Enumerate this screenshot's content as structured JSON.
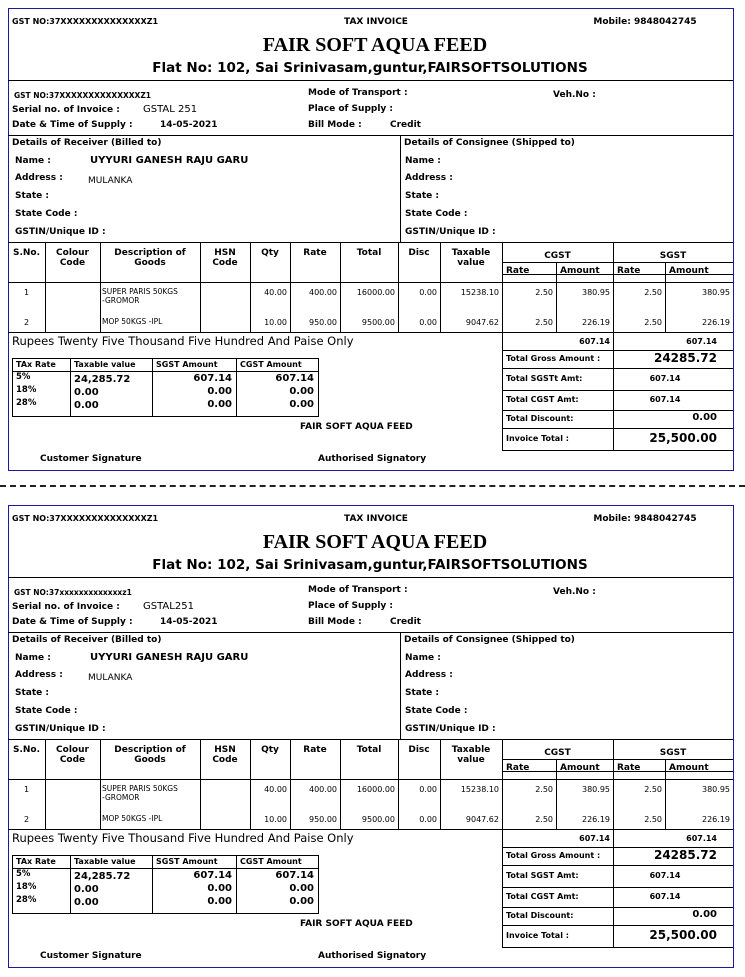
{
  "copies": [
    {
      "header": {
        "gst_no": "GST NO:37XXXXXXXXXXXXXXZ1",
        "doc_title": "TAX INVOICE",
        "mobile": "Mobile: 9848042745",
        "company": "FAIR SOFT AQUA FEED",
        "address": "Flat No: 102, Sai Srinivasam,guntur,FAIRSOFTSOLUTIONS"
      },
      "info": {
        "gst_no": "GST NO:37XXXXXXXXXXXXXXZ1",
        "serial_label": "Serial no. of Invoice :",
        "serial": "GSTAL 251",
        "date_label": "Date & Time of Supply :",
        "date": "14-05-2021",
        "transport_label": "Mode of Transport :",
        "supply_label": "Place of Supply :",
        "bill_mode_label": "Bill Mode :",
        "bill_mode": "Credit",
        "veh_label": "Veh.No :"
      },
      "receiver": {
        "title": "Details of Receiver (Billed to)",
        "name_label": "Name :",
        "name": "UYYURI GANESH RAJU GARU",
        "address_label": "Address :",
        "address": "MULANKA",
        "state_label": "State :",
        "state_code_label": "State Code :",
        "gstin_label": "GSTIN/Unique ID :"
      },
      "consignee": {
        "title": "Details of Consignee (Shipped to)",
        "name_label": "Name :",
        "address_label": "Address :",
        "state_label": "State :",
        "state_code_label": "State Code :",
        "gstin_label": "GSTIN/Unique ID :"
      },
      "items_table": {
        "headers": [
          "S.No.",
          "Colour Code",
          "Description of Goods",
          "HSN Code",
          "Qty",
          "Rate",
          "Total",
          "Disc",
          "Taxable value"
        ],
        "cgst": "CGST",
        "sgst": "SGST",
        "sub_headers": [
          "Rate",
          "Amount",
          "Rate",
          "Amount"
        ],
        "rows": [
          {
            "sno": "1",
            "description": "SUPER PARIS 50KGS -GROMOR",
            "qty": "40.00",
            "rate": "400.00",
            "total": "16000.00",
            "disc": "0.00",
            "taxable": "15238.10",
            "cgst_rate": "2.50",
            "cgst_amount": "380.95",
            "sgst_rate": "2.50",
            "sgst_amount": "380.95"
          },
          {
            "sno": "2",
            "description": "MOP 50KGS -IPL",
            "qty": "10.00",
            "rate": "950.00",
            "total": "9500.00",
            "disc": "0.00",
            "taxable": "9047.62",
            "cgst_rate": "2.50",
            "cgst_amount": "226.19",
            "sgst_rate": "2.50",
            "sgst_amount": "226.19"
          }
        ]
      },
      "amount_words": "Rupees Twenty Five Thousand Five Hundred And  Paise  Only",
      "cgst_total": "607.14",
      "sgst_total": "607.14",
      "tax_summary": {
        "headers": [
          "TAx Rate",
          "Taxable value",
          "SGST Amount",
          "CGST Amount"
        ],
        "rows": [
          [
            "5%",
            "24,285.72",
            "607.14",
            "607.14"
          ],
          [
            "18%",
            "0.00",
            "0.00",
            "0.00"
          ],
          [
            "28%",
            "0.00",
            "0.00",
            "0.00"
          ]
        ]
      },
      "totals": [
        {
          "label": "Total Gross Amount :",
          "value": "24285.72"
        },
        {
          "label": "Total SGSTt Amt:",
          "value": "607.14"
        },
        {
          "label": "Total CGST Amt:",
          "value": "607.14"
        },
        {
          "label": "Total Discount:",
          "value": "0.00"
        },
        {
          "label": "Invoice Total :",
          "value": "25,500.00"
        }
      ],
      "footer": {
        "company": "FAIR SOFT AQUA FEED",
        "customer_signature": "Customer Signature",
        "authorised_signatory": "Authorised Signatory"
      }
    },
    {
      "header": {
        "gst_no": "GST NO:37XXXXXXXXXXXXXXZ1",
        "doc_title": "TAX INVOICE",
        "mobile": "Mobile: 9848042745",
        "company": "FAIR SOFT AQUA FEED",
        "address": "Flat No: 102, Sai Srinivasam,guntur,FAIRSOFTSOLUTIONS"
      },
      "info": {
        "gst_no": "GST NO:37xxxxxxxxxxxxxz1",
        "serial_label": "Serial no. of Invoice :",
        "serial": "GSTAL251",
        "date_label": "Date & Time of Supply :",
        "date": "14-05-2021",
        "transport_label": "Mode of Transport :",
        "supply_label": "Place of Supply :",
        "bill_mode_label": "Bill Mode :",
        "bill_mode": "Credit",
        "veh_label": "Veh.No :"
      },
      "receiver": {
        "title": "Details of Receiver (Billed to)",
        "name_label": "Name :",
        "name": "UYYURI GANESH RAJU GARU",
        "address_label": "Address :",
        "address": "MULANKA",
        "state_label": "State :",
        "state_code_label": "State Code :",
        "gstin_label": "GSTIN/Unique ID :"
      },
      "consignee": {
        "title": "Details of Consignee (Shipped to)",
        "name_label": "Name :",
        "address_label": "Address :",
        "state_label": "State :",
        "state_code_label": "State Code :",
        "gstin_label": "GSTIN/Unique ID :"
      },
      "items_table": {
        "headers": [
          "S.No.",
          "Colour Code",
          "Description of Goods",
          "HSN Code",
          "Qty",
          "Rate",
          "Total",
          "Disc",
          "Taxable value"
        ],
        "cgst": "CGST",
        "sgst": "SGST",
        "sub_headers": [
          "Rate",
          "Amount",
          "Rate",
          "Amount"
        ],
        "rows": [
          {
            "sno": "1",
            "description": "SUPER PARIS 50KGS -GROMOR",
            "qty": "40.00",
            "rate": "400.00",
            "total": "16000.00",
            "disc": "0.00",
            "taxable": "15238.10",
            "cgst_rate": "2.50",
            "cgst_amount": "380.95",
            "sgst_rate": "2.50",
            "sgst_amount": "380.95"
          },
          {
            "sno": "2",
            "description": "MOP 50KGS -IPL",
            "qty": "10.00",
            "rate": "950.00",
            "total": "9500.00",
            "disc": "0.00",
            "taxable": "9047.62",
            "cgst_rate": "2.50",
            "cgst_amount": "226.19",
            "sgst_rate": "2.50",
            "sgst_amount": "226.19"
          }
        ]
      },
      "amount_words": "Rupees Twenty Five Thousand Five Hundred And  Paise  Only",
      "cgst_total": "607.14",
      "sgst_total": "607.14",
      "tax_summary": {
        "headers": [
          "TAx Rate",
          "Taxable value",
          "SGST Amount",
          "CGST Amount"
        ],
        "rows": [
          [
            "5%",
            "24,285.72",
            "607.14",
            "607.14"
          ],
          [
            "18%",
            "0.00",
            "0.00",
            "0.00"
          ],
          [
            "28%",
            "0.00",
            "0.00",
            "0.00"
          ]
        ]
      },
      "totals": [
        {
          "label": "Total Gross Amount :",
          "value": "24285.72"
        },
        {
          "label": "Total SGST Amt:",
          "value": "607.14"
        },
        {
          "label": "Total CGST Amt:",
          "value": "607.14"
        },
        {
          "label": "Total Discount:",
          "value": "0.00"
        },
        {
          "label": "Invoice Total :",
          "value": "25,500.00"
        }
      ],
      "footer": {
        "company": "FAIR SOFT AQUA FEED",
        "customer_signature": "Customer Signature",
        "authorised_signatory": "Authorised Signatory"
      }
    }
  ]
}
